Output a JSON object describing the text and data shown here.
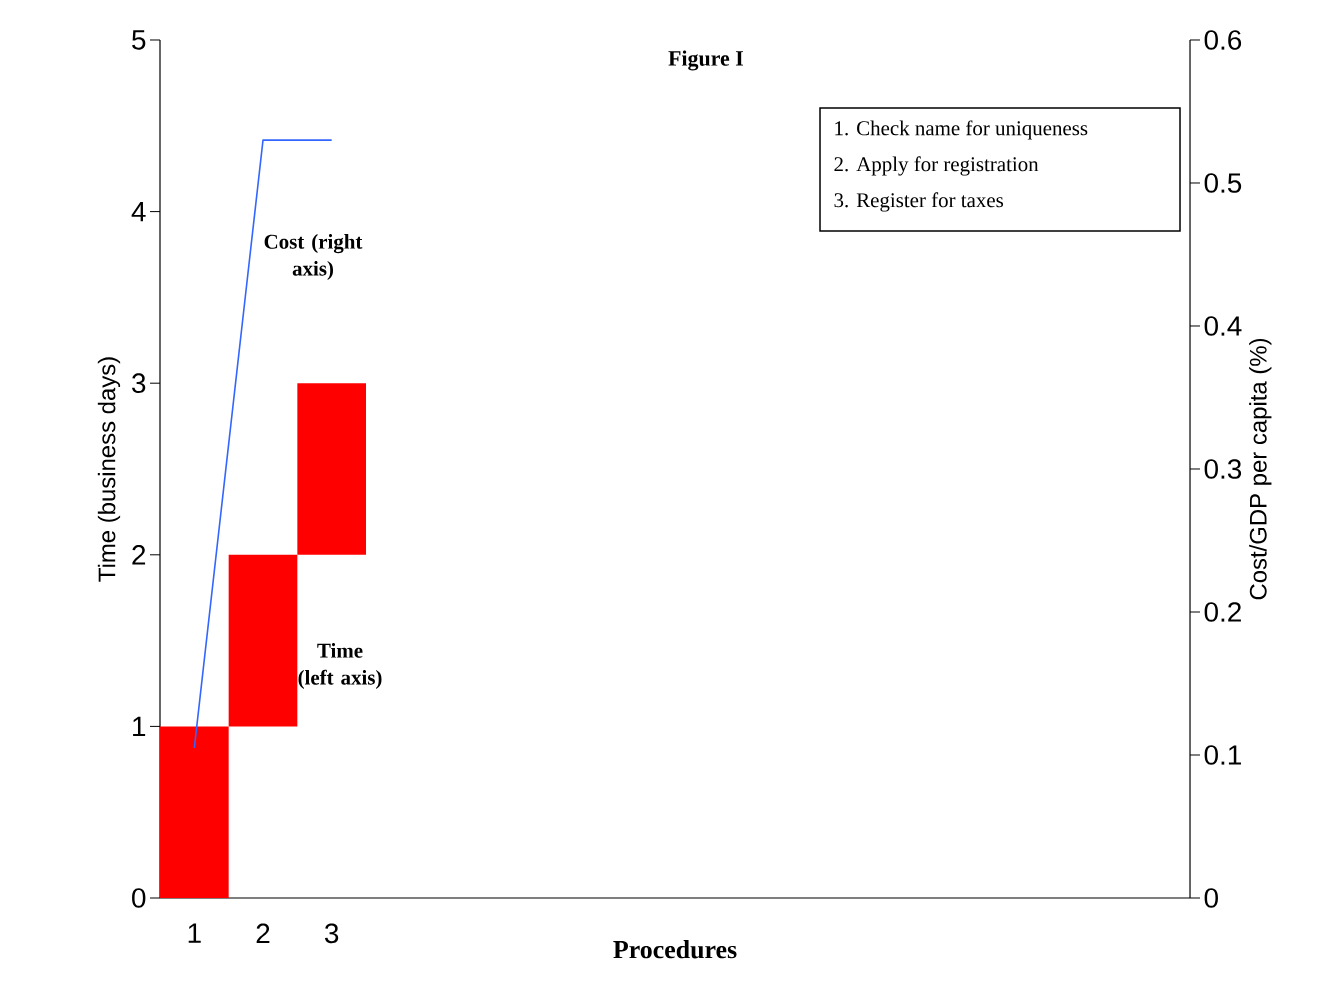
{
  "chart_data": {
    "type": "bar",
    "title": "Figure I",
    "xlabel": "Procedures",
    "ylabel": "Time (business days)",
    "y2label": "Cost/GDP per capita (%)",
    "categories": [
      "1",
      "2",
      "3",
      null,
      null,
      null,
      null,
      null,
      null,
      null,
      null,
      null,
      null,
      null,
      null
    ],
    "series": [
      {
        "color": "#ff0000",
        "base": [
          0,
          1,
          2,
          null,
          null,
          null,
          null,
          null,
          null,
          null,
          null,
          null,
          null,
          null,
          null
        ],
        "values": [
          1,
          1,
          1,
          null,
          null,
          null,
          null,
          null,
          null,
          null,
          null,
          null,
          null,
          null,
          null
        ]
      },
      {
        "type": "line",
        "axis": "y2",
        "color": "#3366ff",
        "values": [
          0.105,
          0.53,
          0.53,
          null,
          null,
          null,
          null,
          null,
          null,
          null,
          null,
          null,
          null,
          null,
          null
        ]
      }
    ],
    "ylim": [
      0,
      5
    ],
    "yticks": [
      0,
      1,
      2,
      3,
      4,
      5
    ],
    "y2lim": [
      0,
      0.6
    ],
    "y2ticks": [
      0,
      0.1,
      0.2,
      0.3,
      0.4,
      0.5,
      0.6
    ],
    "annotations": [
      "Cost (right axis)",
      "Time (left axis)",
      "1.   Check name for uniqueness",
      "2.   Apply for registration",
      "3.   Register for taxes"
    ]
  }
}
